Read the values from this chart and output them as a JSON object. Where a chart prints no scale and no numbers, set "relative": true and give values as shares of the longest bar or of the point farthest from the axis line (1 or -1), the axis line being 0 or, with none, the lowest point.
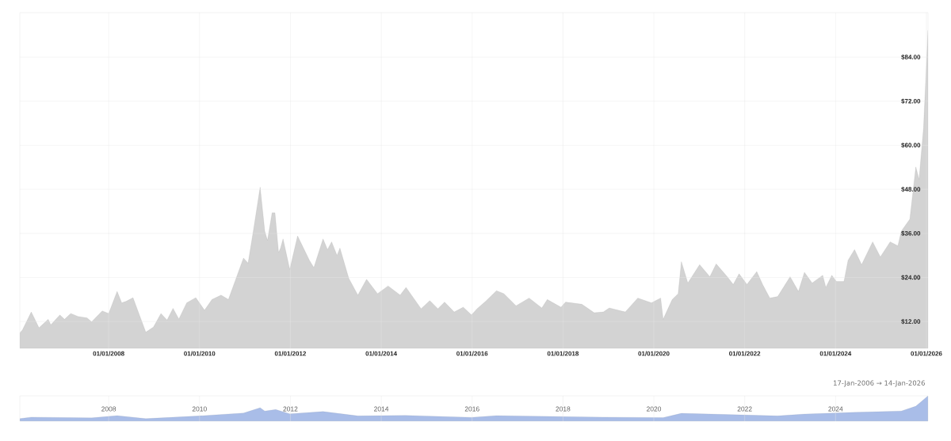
{
  "chart_data": [
    {
      "type": "area",
      "grid": true,
      "x": [
        "2006-01-17",
        "2006-02-07",
        "2006-04-19",
        "2006-05-07",
        "2006-06-20",
        "2006-09-02",
        "2006-09-23",
        "2006-12-05",
        "2007-01-11",
        "2007-03-02",
        "2007-04-29",
        "2007-07-11",
        "2007-08-17",
        "2007-11-10",
        "2008-01-01",
        "2008-03-09",
        "2008-04-15",
        "2008-05-21",
        "2008-07-15",
        "2008-09-09",
        "2008-10-26",
        "2008-12-27",
        "2009-02-25",
        "2009-04-15",
        "2009-06-02",
        "2009-07-19",
        "2009-09-20",
        "2009-12-02",
        "2010-02-10",
        "2010-04-11",
        "2010-06-23",
        "2010-08-21",
        "2010-10-22",
        "2010-12-20",
        "2011-01-26",
        "2011-03-09",
        "2011-05-03",
        "2011-06-09",
        "2011-07-01",
        "2011-08-07",
        "2011-08-30",
        "2011-09-28",
        "2011-10-14",
        "2011-11-03",
        "2011-12-27",
        "2012-02-28",
        "2012-06-02",
        "2012-07-08",
        "2012-09-20",
        "2012-10-26",
        "2012-11-28",
        "2013-01-11",
        "2013-02-03",
        "2013-04-15",
        "2013-06-27",
        "2013-09-05",
        "2013-12-02",
        "2014-02-25",
        "2014-06-02",
        "2014-07-19",
        "2014-11-17",
        "2015-01-26",
        "2015-04-01",
        "2015-05-25",
        "2015-08-10",
        "2015-10-22",
        "2015-12-27",
        "2016-02-10",
        "2016-04-19",
        "2016-07-15",
        "2016-09-13",
        "2016-12-20",
        "2017-04-04",
        "2017-07-15",
        "2017-08-28",
        "2017-12-16",
        "2018-01-22",
        "2018-06-02",
        "2018-09-09",
        "2018-11-21",
        "2019-01-08",
        "2019-05-17",
        "2019-08-25",
        "2019-12-13",
        "2020-02-25",
        "2020-03-16",
        "2020-05-28",
        "2020-07-15",
        "2020-08-10",
        "2020-10-01",
        "2021-01-04",
        "2021-03-27",
        "2021-05-17",
        "2021-08-14",
        "2021-10-01",
        "2021-11-17",
        "2022-01-19",
        "2022-04-08",
        "2022-05-25",
        "2022-07-22",
        "2022-09-23",
        "2023-01-01",
        "2023-03-09",
        "2023-04-26",
        "2023-06-27",
        "2023-09-20",
        "2023-10-15",
        "2023-12-02",
        "2024-01-08",
        "2024-03-09",
        "2024-04-11",
        "2024-06-02",
        "2024-07-29",
        "2024-10-26",
        "2024-12-27",
        "2025-03-16",
        "2025-05-17",
        "2025-06-13",
        "2025-08-21",
        "2025-10-08",
        "2025-11-03",
        "2025-12-09",
        "2026-01-14"
      ],
      "series": [
        {
          "color": "#d3d3d3",
          "values": [
            8.9,
            9.7,
            14.6,
            13.4,
            10.3,
            12.6,
            11.1,
            13.8,
            12.6,
            14.2,
            13.4,
            13.0,
            11.9,
            14.9,
            14.2,
            20.2,
            17.1,
            17.5,
            18.5,
            13.4,
            9.1,
            10.5,
            14.2,
            12.4,
            15.6,
            12.7,
            17.1,
            18.5,
            15.1,
            18.0,
            19.2,
            18.0,
            23.8,
            29.3,
            27.9,
            36.6,
            48.6,
            36.6,
            34.1,
            41.6,
            41.6,
            30.8,
            32.0,
            34.5,
            26.2,
            35.3,
            28.7,
            26.7,
            34.5,
            31.6,
            33.7,
            30.0,
            32.0,
            23.8,
            19.2,
            23.5,
            19.6,
            21.7,
            19.2,
            21.3,
            15.5,
            17.7,
            15.5,
            17.3,
            14.6,
            15.9,
            13.8,
            15.5,
            17.5,
            20.4,
            19.6,
            16.3,
            18.4,
            15.7,
            18.0,
            15.9,
            17.3,
            16.7,
            14.4,
            14.6,
            15.7,
            14.6,
            18.4,
            17.1,
            18.4,
            12.6,
            18.0,
            19.6,
            28.3,
            22.5,
            27.5,
            24.2,
            27.7,
            24.2,
            22.1,
            25.0,
            22.1,
            25.6,
            22.1,
            18.4,
            18.8,
            24.2,
            20.2,
            25.4,
            22.5,
            24.6,
            21.3,
            24.6,
            22.9,
            22.9,
            28.7,
            31.6,
            27.5,
            33.7,
            29.6,
            33.7,
            32.6,
            36.6,
            39.9,
            54.1,
            50.7,
            64.8,
            91.3
          ]
        }
      ],
      "xlim": [
        "2006-01-17",
        "2026-01-14"
      ],
      "ylim": [
        4.7,
        96.1
      ],
      "xticks": [
        {
          "value": "2008-01-01",
          "label": "01/01/2008"
        },
        {
          "value": "2010-01-01",
          "label": "01/01/2010"
        },
        {
          "value": "2012-01-01",
          "label": "01/01/2012"
        },
        {
          "value": "2014-01-01",
          "label": "01/01/2014"
        },
        {
          "value": "2016-01-01",
          "label": "01/01/2016"
        },
        {
          "value": "2018-01-01",
          "label": "01/01/2018"
        },
        {
          "value": "2020-01-01",
          "label": "01/01/2020"
        },
        {
          "value": "2022-01-01",
          "label": "01/01/2022"
        },
        {
          "value": "2024-01-01",
          "label": "01/01/2024"
        },
        {
          "value": "2026-01-01",
          "label": "01/01/2026"
        }
      ],
      "yticks": [
        {
          "value": 12,
          "label": "$12.00"
        },
        {
          "value": 24,
          "label": "$24.00"
        },
        {
          "value": 36,
          "label": "$36.00"
        },
        {
          "value": 48,
          "label": "$48.00"
        },
        {
          "value": 60,
          "label": "$60.00"
        },
        {
          "value": 72,
          "label": "$72.00"
        },
        {
          "value": 84,
          "label": "$84.00"
        }
      ]
    },
    {
      "type": "area",
      "relative": true,
      "grid": "x",
      "x": [
        "2006-01-17",
        "2006-04-19",
        "2007-08-17",
        "2008-03-09",
        "2008-10-26",
        "2009-12-02",
        "2010-12-20",
        "2011-05-03",
        "2011-06-09",
        "2011-09-05",
        "2011-12-27",
        "2012-09-20",
        "2013-06-27",
        "2014-07-19",
        "2015-12-27",
        "2016-07-15",
        "2018-11-21",
        "2020-03-16",
        "2020-08-10",
        "2022-09-23",
        "2023-04-26",
        "2024-06-02",
        "2025-06-13",
        "2025-10-08",
        "2026-01-14"
      ],
      "series": [
        {
          "color": "#a9bde8",
          "values": [
            0.1,
            0.16,
            0.13,
            0.22,
            0.1,
            0.2,
            0.32,
            0.53,
            0.4,
            0.46,
            0.29,
            0.38,
            0.21,
            0.23,
            0.15,
            0.22,
            0.16,
            0.14,
            0.31,
            0.21,
            0.28,
            0.35,
            0.4,
            0.59,
            1
          ]
        }
      ],
      "xlim": [
        "2006-01-17",
        "2026-01-14"
      ],
      "xticks": [
        {
          "value": "2008-01-01",
          "label": "2008"
        },
        {
          "value": "2010-01-01",
          "label": "2010"
        },
        {
          "value": "2012-01-01",
          "label": "2012"
        },
        {
          "value": "2014-01-01",
          "label": "2014"
        },
        {
          "value": "2016-01-01",
          "label": "2016"
        },
        {
          "value": "2018-01-01",
          "label": "2018"
        },
        {
          "value": "2020-01-01",
          "label": "2020"
        },
        {
          "value": "2022-01-01",
          "label": "2022"
        },
        {
          "value": "2024-01-01",
          "label": "2024"
        }
      ],
      "annotations": [
        "17-Jan-2006 → 14-Jan-2026"
      ]
    }
  ]
}
